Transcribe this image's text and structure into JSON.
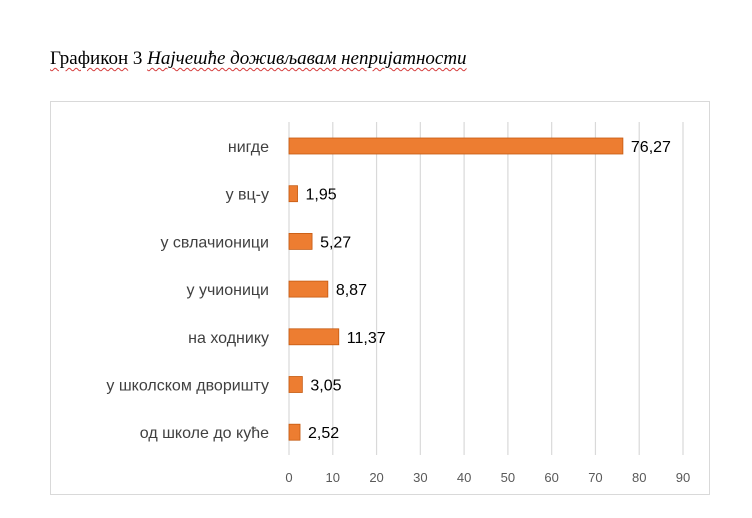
{
  "caption": {
    "prefix": "Графикон",
    "number": "3",
    "title": "Најчешће доживљавам непријатности"
  },
  "chart_data": {
    "type": "bar",
    "orientation": "horizontal",
    "categories": [
      "нигде",
      "у вц-у",
      "у свлачионици",
      "у учионици",
      "на ходнику",
      "у школском дворишту",
      "од школе до куће"
    ],
    "values": [
      76.27,
      1.95,
      5.27,
      8.87,
      11.37,
      3.05,
      2.52
    ],
    "value_labels": [
      "76,27",
      "1,95",
      "5,27",
      "8,87",
      "11,37",
      "3,05",
      "2,52"
    ],
    "xlim": [
      0,
      90
    ],
    "x_ticks": [
      0,
      10,
      20,
      30,
      40,
      50,
      60,
      70,
      80,
      90
    ],
    "grid": "vertical",
    "bar_color": "#ed7d31",
    "bar_edge_color": "#c55a11",
    "grid_color": "#d9d9d9"
  }
}
